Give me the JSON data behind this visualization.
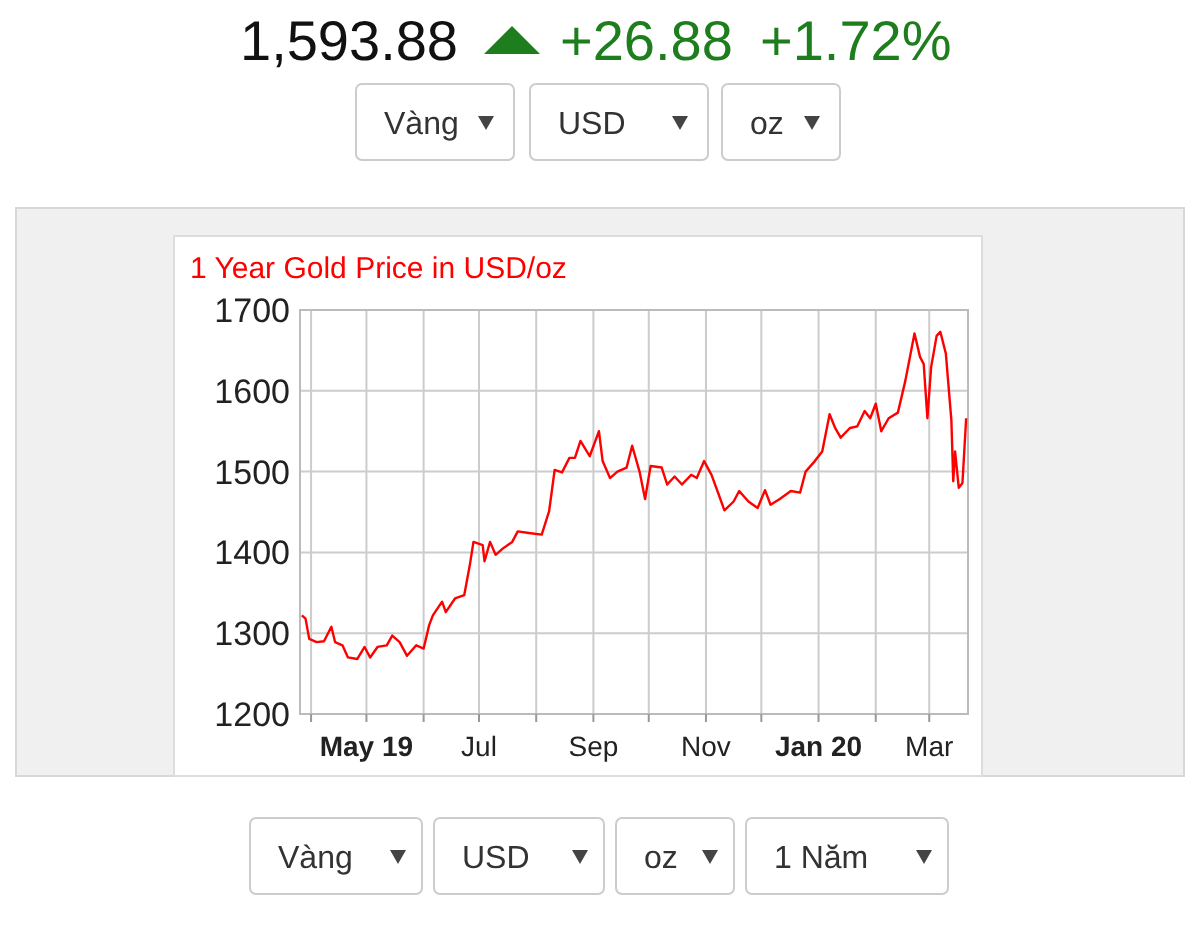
{
  "chart_data": {
    "type": "line",
    "title": "1 Year Gold Price in USD/oz",
    "annotations": [
      "1,593.88",
      "+26.88",
      "+1.72%",
      "Vàng",
      "USD",
      "oz",
      "Vàng",
      "USD",
      "oz",
      "1 Năm"
    ],
    "x": [
      "2019-03-27",
      "2019-03-29",
      "2019-03-31",
      "2019-04-04",
      "2019-04-08",
      "2019-04-12",
      "2019-04-14",
      "2019-04-18",
      "2019-04-21",
      "2019-04-26",
      "2019-04-30",
      "2019-05-03",
      "2019-05-07",
      "2019-05-12",
      "2019-05-15",
      "2019-05-19",
      "2019-05-23",
      "2019-05-28",
      "2019-06-01",
      "2019-06-04",
      "2019-06-06",
      "2019-06-11",
      "2019-06-13",
      "2019-06-18",
      "2019-06-23",
      "2019-06-26",
      "2019-06-28",
      "2019-07-03",
      "2019-07-04",
      "2019-07-07",
      "2019-07-10",
      "2019-07-14",
      "2019-07-19",
      "2019-07-22",
      "2019-07-28",
      "2019-08-04",
      "2019-08-08",
      "2019-08-11",
      "2019-08-15",
      "2019-08-19",
      "2019-08-22",
      "2019-08-25",
      "2019-08-30",
      "2019-09-04",
      "2019-09-06",
      "2019-09-10",
      "2019-09-14",
      "2019-09-19",
      "2019-09-22",
      "2019-09-26",
      "2019-09-29",
      "2019-10-02",
      "2019-10-08",
      "2019-10-11",
      "2019-10-15",
      "2019-10-19",
      "2019-10-24",
      "2019-10-27",
      "2019-10-31",
      "2019-11-04",
      "2019-11-08",
      "2019-11-11",
      "2019-11-16",
      "2019-11-19",
      "2019-11-24",
      "2019-11-29",
      "2019-12-03",
      "2019-12-06",
      "2019-12-11",
      "2019-12-17",
      "2019-12-22",
      "2019-12-25",
      "2019-12-30",
      "2020-01-03",
      "2020-01-07",
      "2020-01-10",
      "2020-01-13",
      "2020-01-18",
      "2020-01-22",
      "2020-01-26",
      "2020-01-29",
      "2020-02-01",
      "2020-02-04",
      "2020-02-08",
      "2020-02-13",
      "2020-02-17",
      "2020-02-22",
      "2020-02-25",
      "2020-02-27",
      "2020-02-29",
      "2020-03-02",
      "2020-03-05",
      "2020-03-07",
      "2020-03-10",
      "2020-03-13",
      "2020-03-14",
      "2020-03-15",
      "2020-03-17",
      "2020-03-19",
      "2020-03-21"
    ],
    "series": [
      {
        "color": "#ff0000",
        "values": [
          1322,
          1318,
          1293,
          1289,
          1290,
          1308,
          1289,
          1285,
          1270,
          1268,
          1283,
          1270,
          1283,
          1285,
          1297,
          1289,
          1272,
          1285,
          1281,
          1310,
          1322,
          1339,
          1326,
          1343,
          1347,
          1384,
          1413,
          1409,
          1389,
          1413,
          1397,
          1405,
          1413,
          1426,
          1424,
          1422,
          1451,
          1502,
          1499,
          1517,
          1517,
          1538,
          1519,
          1550,
          1513,
          1492,
          1500,
          1505,
          1532,
          1500,
          1466,
          1507,
          1505,
          1484,
          1494,
          1484,
          1496,
          1492,
          1513,
          1496,
          1471,
          1452,
          1463,
          1476,
          1463,
          1455,
          1477,
          1459,
          1466,
          1476,
          1474,
          1500,
          1513,
          1525,
          1571,
          1554,
          1542,
          1554,
          1556,
          1575,
          1566,
          1584,
          1550,
          1566,
          1573,
          1612,
          1671,
          1642,
          1633,
          1566,
          1629,
          1668,
          1673,
          1646,
          1563,
          1488,
          1525,
          1480,
          1486,
          1566
        ]
      }
    ],
    "xlim": [
      "2019-03-26",
      "2020-03-22"
    ],
    "xticks": [
      {
        "value": "2019-04-01",
        "label": null
      },
      {
        "value": "2019-05-01",
        "label": "May 19"
      },
      {
        "value": "2019-06-01",
        "label": null
      },
      {
        "value": "2019-07-01",
        "label": "Jul"
      },
      {
        "value": "2019-08-01",
        "label": null
      },
      {
        "value": "2019-09-01",
        "label": "Sep"
      },
      {
        "value": "2019-10-01",
        "label": null
      },
      {
        "value": "2019-11-01",
        "label": "Nov"
      },
      {
        "value": "2019-12-01",
        "label": null
      },
      {
        "value": "2020-01-01",
        "label": "Jan 20"
      },
      {
        "value": "2020-02-01",
        "label": null
      },
      {
        "value": "2020-03-01",
        "label": "Mar"
      }
    ],
    "ylim": [
      1200,
      1700
    ],
    "yticks": [
      1200,
      1300,
      1400,
      1500,
      1600,
      1700
    ],
    "grid": true,
    "line_style": "solid",
    "marker": "none"
  }
}
